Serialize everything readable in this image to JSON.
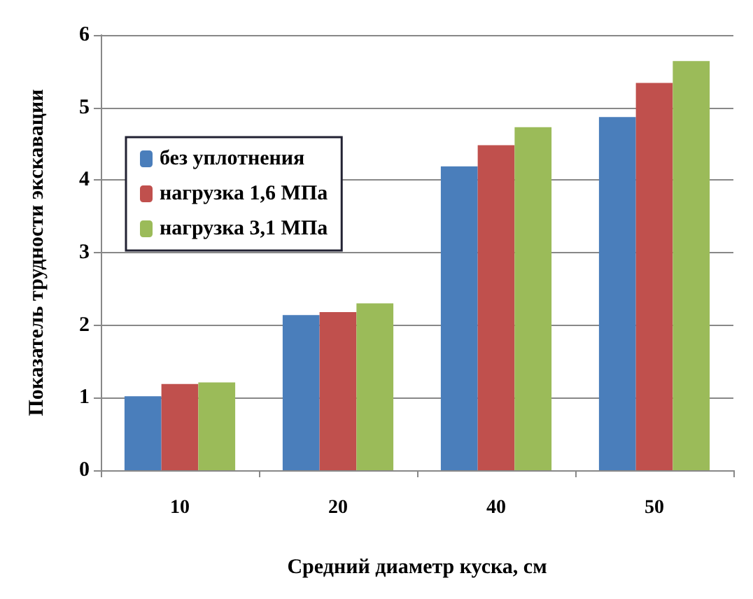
{
  "chart_data": {
    "type": "bar",
    "xlabel": "Средний диаметр куска, см",
    "ylabel": "Показатель трудности экскавации",
    "categories": [
      "10",
      "20",
      "40",
      "50"
    ],
    "series": [
      {
        "name": "без уплотнения",
        "color": "#4a7ebb",
        "values": [
          1.02,
          2.14,
          4.19,
          4.87
        ]
      },
      {
        "name": "нагрузка 1,6 МПа",
        "color": "#c0504d",
        "values": [
          1.19,
          2.18,
          4.48,
          5.34
        ]
      },
      {
        "name": "нагрузка 3,1 МПа",
        "color": "#9bbb59",
        "values": [
          1.21,
          2.3,
          4.73,
          5.64
        ]
      }
    ],
    "ylim": [
      0,
      6
    ],
    "yticks": [
      0,
      1,
      2,
      3,
      4,
      5,
      6
    ],
    "grid": "y",
    "legend": "top left"
  }
}
